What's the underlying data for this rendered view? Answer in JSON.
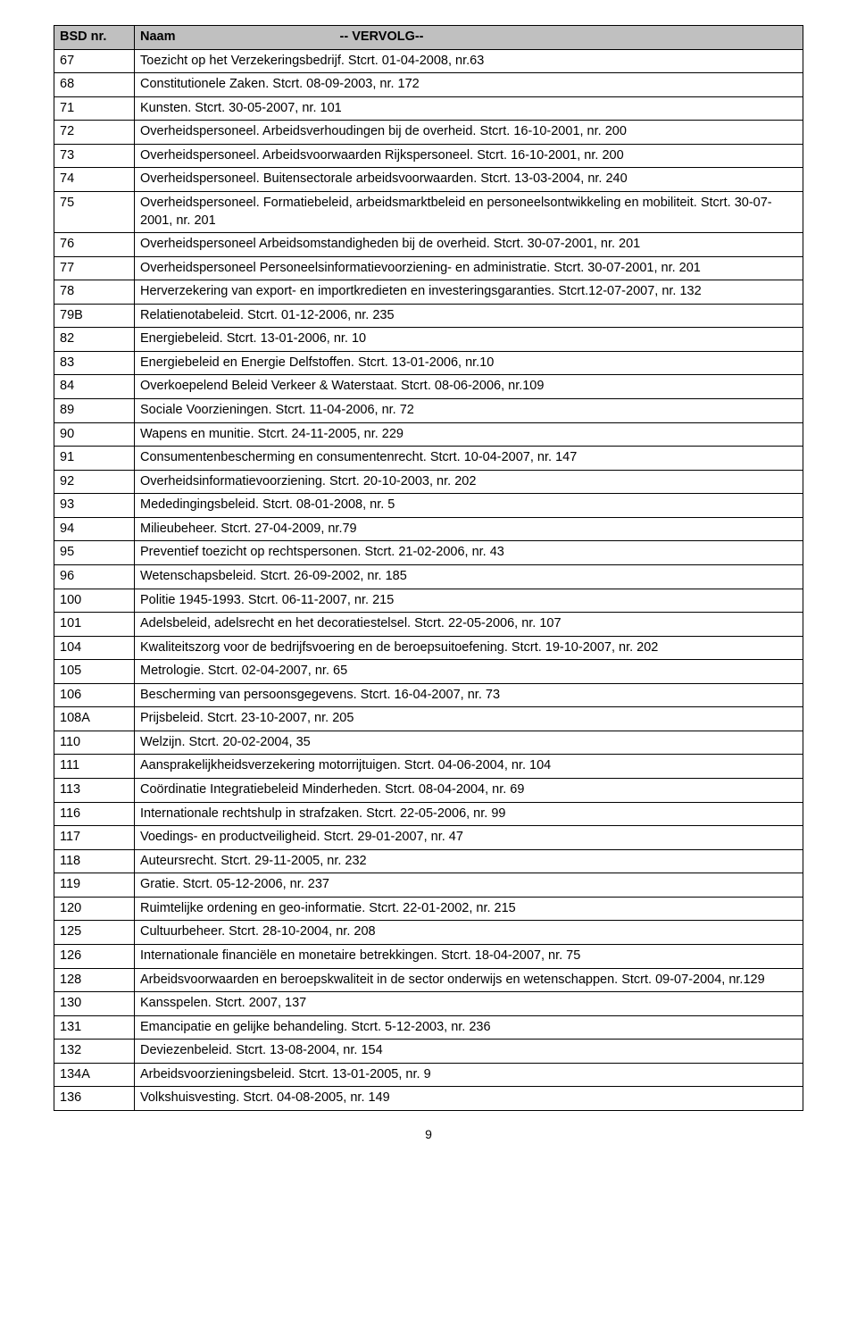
{
  "table": {
    "header_bg": "#c0c0c0",
    "border_color": "#000000",
    "text_color": "#000000",
    "font_size_pt": 11,
    "col1_header": "BSD nr.",
    "col2_header_label": "Naam",
    "col2_header_suffix": "-- VERVOLG--",
    "rows": [
      {
        "id": "67",
        "name": "Toezicht op het Verzekeringsbedrijf. Stcrt. 01-04-2008, nr.63"
      },
      {
        "id": "68",
        "name": "Constitutionele Zaken. Stcrt. 08-09-2003, nr. 172"
      },
      {
        "id": "71",
        "name": "Kunsten. Stcrt. 30-05-2007, nr. 101"
      },
      {
        "id": "72",
        "name": "Overheidspersoneel. Arbeidsverhoudingen bij de overheid. Stcrt. 16-10-2001, nr. 200"
      },
      {
        "id": "73",
        "name": "Overheidspersoneel. Arbeidsvoorwaarden Rijkspersoneel. Stcrt. 16-10-2001, nr. 200"
      },
      {
        "id": "74",
        "name": "Overheidspersoneel. Buitensectorale arbeidsvoorwaarden. Stcrt. 13-03-2004, nr. 240"
      },
      {
        "id": "75",
        "name": "Overheidspersoneel. Formatiebeleid, arbeidsmarktbeleid en personeelsontwikkeling en mobiliteit. Stcrt. 30-07-2001, nr. 201"
      },
      {
        "id": "76",
        "name": "Overheidspersoneel Arbeidsomstandigheden bij de overheid. Stcrt. 30-07-2001, nr. 201"
      },
      {
        "id": "77",
        "name": "Overheidspersoneel Personeelsinformatievoorziening- en administratie. Stcrt. 30-07-2001, nr. 201"
      },
      {
        "id": "78",
        "name": "Herverzekering van export- en importkredieten en investeringsgaranties. Stcrt.12-07-2007, nr. 132"
      },
      {
        "id": "79B",
        "name": "Relatienotabeleid. Stcrt. 01-12-2006, nr. 235"
      },
      {
        "id": "82",
        "name": "Energiebeleid. Stcrt. 13-01-2006, nr. 10"
      },
      {
        "id": "83",
        "name": "Energiebeleid en Energie Delfstoffen. Stcrt. 13-01-2006, nr.10"
      },
      {
        "id": "84",
        "name": "Overkoepelend Beleid Verkeer & Waterstaat. Stcrt. 08-06-2006, nr.109"
      },
      {
        "id": "89",
        "name": "Sociale Voorzieningen. Stcrt. 11-04-2006, nr. 72"
      },
      {
        "id": "90",
        "name": "Wapens en munitie. Stcrt. 24-11-2005, nr. 229"
      },
      {
        "id": "91",
        "name": "Consumentenbescherming en consumentenrecht. Stcrt. 10-04-2007, nr. 147"
      },
      {
        "id": "92",
        "name": "Overheidsinformatievoorziening. Stcrt. 20-10-2003, nr. 202"
      },
      {
        "id": "93",
        "name": "Mededingingsbeleid. Stcrt. 08-01-2008, nr. 5"
      },
      {
        "id": "94",
        "name": "Milieubeheer. Stcrt. 27-04-2009, nr.79"
      },
      {
        "id": "95",
        "name": "Preventief toezicht op rechtspersonen. Stcrt. 21-02-2006, nr. 43"
      },
      {
        "id": "96",
        "name": "Wetenschapsbeleid. Stcrt. 26-09-2002, nr. 185"
      },
      {
        "id": "100",
        "name": "Politie 1945-1993. Stcrt. 06-11-2007, nr. 215"
      },
      {
        "id": "101",
        "name": "Adelsbeleid, adelsrecht en het decoratiestelsel. Stcrt. 22-05-2006, nr. 107"
      },
      {
        "id": "104",
        "name": "Kwaliteitszorg voor de bedrijfsvoering en de beroepsuitoefening. Stcrt. 19-10-2007, nr. 202"
      },
      {
        "id": "105",
        "name": "Metrologie. Stcrt. 02-04-2007, nr. 65"
      },
      {
        "id": "106",
        "name": "Bescherming van persoonsgegevens. Stcrt. 16-04-2007, nr. 73"
      },
      {
        "id": "108A",
        "name": "Prijsbeleid. Stcrt. 23-10-2007, nr. 205"
      },
      {
        "id": "110",
        "name": "Welzijn. Stcrt. 20-02-2004, 35"
      },
      {
        "id": "111",
        "name": "Aansprakelijkheidsverzekering motorrijtuigen. Stcrt. 04-06-2004, nr. 104"
      },
      {
        "id": "113",
        "name": "Coördinatie Integratiebeleid Minderheden. Stcrt. 08-04-2004, nr. 69"
      },
      {
        "id": "116",
        "name": "Internationale rechtshulp in strafzaken. Stcrt. 22-05-2006, nr. 99"
      },
      {
        "id": "117",
        "name": "Voedings- en productveiligheid. Stcrt. 29-01-2007, nr. 47"
      },
      {
        "id": "118",
        "name": "Auteursrecht. Stcrt. 29-11-2005, nr. 232"
      },
      {
        "id": "119",
        "name": "Gratie. Stcrt. 05-12-2006, nr. 237"
      },
      {
        "id": "120",
        "name": "Ruimtelijke ordening en geo-informatie. Stcrt. 22-01-2002, nr. 215"
      },
      {
        "id": "125",
        "name": "Cultuurbeheer. Stcrt. 28-10-2004, nr. 208"
      },
      {
        "id": "126",
        "name": "Internationale financiële en monetaire betrekkingen. Stcrt. 18-04-2007, nr. 75"
      },
      {
        "id": "128",
        "name": "Arbeidsvoorwaarden en beroepskwaliteit in de sector onderwijs en wetenschappen. Stcrt. 09-07-2004, nr.129"
      },
      {
        "id": "130",
        "name": "Kansspelen. Stcrt. 2007, 137"
      },
      {
        "id": "131",
        "name": "Emancipatie en gelijke behandeling. Stcrt. 5-12-2003, nr. 236"
      },
      {
        "id": "132",
        "name": "Deviezenbeleid. Stcrt. 13-08-2004, nr. 154"
      },
      {
        "id": "134A",
        "name": "Arbeidsvoorzieningsbeleid. Stcrt. 13-01-2005, nr. 9"
      },
      {
        "id": "136",
        "name": "Volkshuisvesting. Stcrt. 04-08-2005, nr. 149"
      }
    ]
  },
  "page_number": "9"
}
